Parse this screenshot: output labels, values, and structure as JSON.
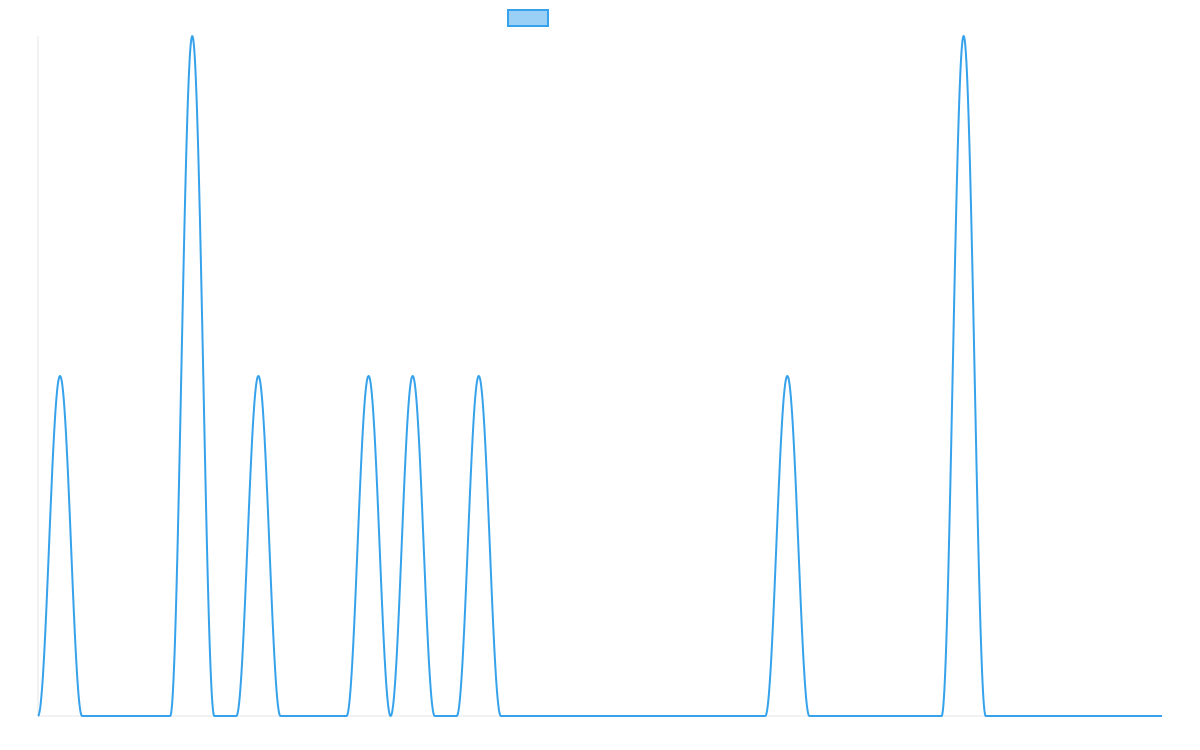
{
  "chart_data": {
    "type": "line",
    "title": "",
    "xlabel": "",
    "ylabel": "",
    "grid": false,
    "legend": {
      "position": "top-center",
      "entries": [
        {
          "name": "",
          "color": "#36A2EB",
          "fill": "#9AD0F5"
        }
      ]
    },
    "xlim": [
      0,
      51
    ],
    "ylim": [
      0,
      2
    ],
    "peak_halfwidth": 1,
    "series": [
      {
        "name": "",
        "color": "#36A2EB",
        "peaks": [
          {
            "x": 1,
            "y": 1
          },
          {
            "x": 7,
            "y": 2
          },
          {
            "x": 10,
            "y": 1
          },
          {
            "x": 15,
            "y": 1
          },
          {
            "x": 17,
            "y": 1
          },
          {
            "x": 20,
            "y": 1
          },
          {
            "x": 34,
            "y": 1
          },
          {
            "x": 42,
            "y": 2
          }
        ]
      }
    ]
  }
}
